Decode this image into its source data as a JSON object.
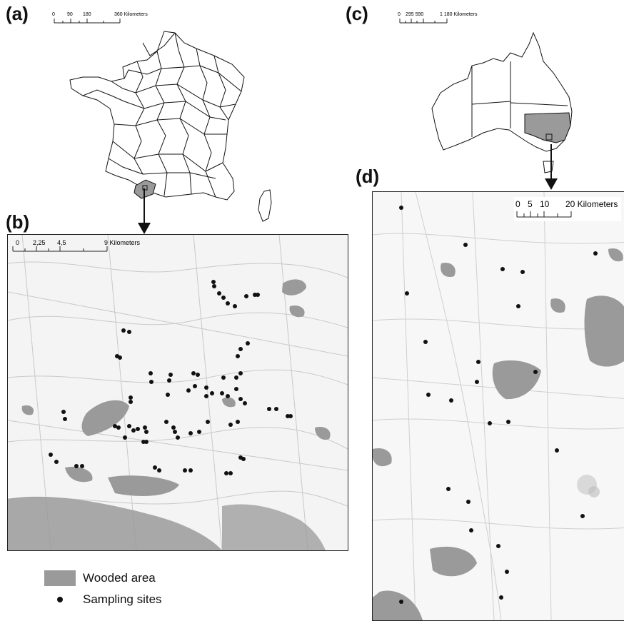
{
  "panels": {
    "a": {
      "label": "(a)",
      "scale_ticks": [
        "0",
        "90",
        "180",
        "360 Kilometers"
      ]
    },
    "b": {
      "label": "(b)",
      "scale_ticks": [
        "0",
        "2,25",
        "4,5",
        "9 Kilometers"
      ]
    },
    "c": {
      "label": "(c)",
      "scale_ticks": [
        "0",
        "295 590",
        "1 180 Kilometers"
      ]
    },
    "d": {
      "label": "(d)",
      "scale_ticks": [
        "0",
        "5",
        "10",
        "20 Kilometers"
      ]
    }
  },
  "legend": {
    "wooded_area": "Wooded area",
    "sampling_sites": "Sampling sites"
  },
  "colors": {
    "wooded": "#9a9a9a",
    "background_map": "#f4f4f4",
    "outline": "#111111",
    "site_dot": "#111111"
  }
}
